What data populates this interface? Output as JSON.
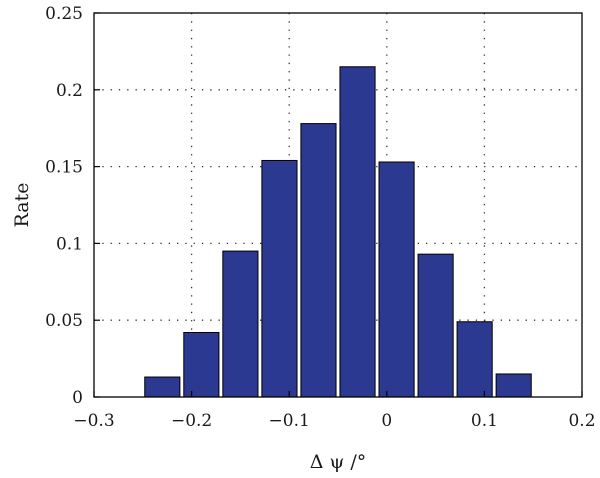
{
  "chart_data": {
    "type": "bar",
    "title": "",
    "xlabel": "Δ ψ /°",
    "ylabel": "Rate",
    "xlim": [
      -0.3,
      0.2
    ],
    "ylim": [
      0,
      0.25
    ],
    "x_ticks": [
      -0.3,
      -0.2,
      -0.1,
      0,
      0.1,
      0.2
    ],
    "x_tick_labels": [
      "−0.3",
      "−0.2",
      "−0.1",
      "0",
      "0.1",
      "0.2"
    ],
    "y_ticks": [
      0,
      0.05,
      0.1,
      0.15,
      0.2,
      0.25
    ],
    "y_tick_labels": [
      "0",
      "0.05",
      "0.1",
      "0.15",
      "0.2",
      "0.25"
    ],
    "bin_width": 0.04,
    "bars": [
      {
        "x": -0.23,
        "value": 0.013
      },
      {
        "x": -0.19,
        "value": 0.042
      },
      {
        "x": -0.15,
        "value": 0.095
      },
      {
        "x": -0.11,
        "value": 0.154
      },
      {
        "x": -0.07,
        "value": 0.178
      },
      {
        "x": -0.03,
        "value": 0.215
      },
      {
        "x": 0.01,
        "value": 0.153
      },
      {
        "x": 0.05,
        "value": 0.093
      },
      {
        "x": 0.09,
        "value": 0.049
      },
      {
        "x": 0.13,
        "value": 0.015
      }
    ],
    "grid": true,
    "colors": {
      "bar_fill": "#2b3990",
      "bar_edge": "#000000",
      "grid": "#333333"
    }
  }
}
